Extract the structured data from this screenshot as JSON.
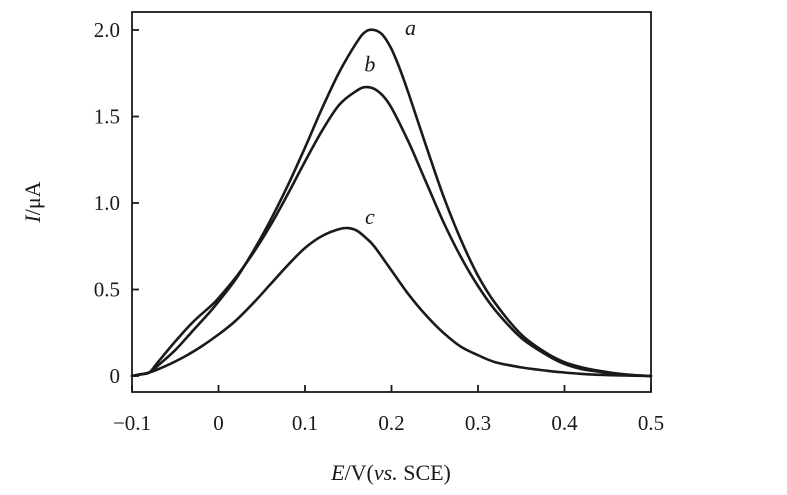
{
  "chart_data": {
    "type": "line",
    "xlabel": {
      "italic": "E",
      "rest": "/V(",
      "italic2": "vs.",
      "rest2": " SCE)"
    },
    "ylabel": {
      "italic": "I",
      "rest": "/μA"
    },
    "xlim": [
      -0.1,
      0.5
    ],
    "ylim": [
      -0.1,
      2.1
    ],
    "xticks": [
      -0.1,
      0,
      0.1,
      0.2,
      0.3,
      0.4,
      0.5
    ],
    "xtick_labels": [
      "−0.1",
      "0",
      "0.1",
      "0.2",
      "0.3",
      "0.4",
      "0.5"
    ],
    "yticks": [
      0,
      0.5,
      1.0,
      1.5,
      2.0
    ],
    "ytick_labels": [
      "0",
      "0.5",
      "1.0",
      "1.5",
      "2.0"
    ],
    "grid": false,
    "series": [
      {
        "name": "a",
        "label_pos": [
          0.222,
          1.97
        ],
        "x": [
          -0.1,
          -0.09,
          -0.08,
          -0.07,
          -0.05,
          -0.03,
          -0.01,
          0.0,
          0.02,
          0.04,
          0.06,
          0.08,
          0.1,
          0.12,
          0.14,
          0.16,
          0.17,
          0.18,
          0.19,
          0.2,
          0.21,
          0.22,
          0.24,
          0.26,
          0.28,
          0.3,
          0.32,
          0.35,
          0.38,
          0.4,
          0.42,
          0.44,
          0.46,
          0.48,
          0.5
        ],
        "values": [
          0.0,
          0.01,
          0.02,
          0.06,
          0.15,
          0.26,
          0.37,
          0.43,
          0.56,
          0.72,
          0.9,
          1.1,
          1.32,
          1.55,
          1.76,
          1.93,
          1.99,
          2.0,
          1.97,
          1.89,
          1.77,
          1.63,
          1.33,
          1.04,
          0.79,
          0.58,
          0.42,
          0.24,
          0.13,
          0.08,
          0.05,
          0.03,
          0.015,
          0.005,
          0.0
        ]
      },
      {
        "name": "b",
        "label_pos": [
          0.175,
          1.76
        ],
        "x": [
          -0.1,
          -0.09,
          -0.08,
          -0.07,
          -0.05,
          -0.03,
          -0.01,
          0.0,
          0.02,
          0.04,
          0.06,
          0.08,
          0.1,
          0.12,
          0.14,
          0.16,
          0.17,
          0.18,
          0.19,
          0.2,
          0.22,
          0.24,
          0.26,
          0.28,
          0.3,
          0.32,
          0.35,
          0.38,
          0.4,
          0.42,
          0.44,
          0.46,
          0.48,
          0.5
        ],
        "values": [
          0.0,
          0.01,
          0.02,
          0.08,
          0.2,
          0.31,
          0.4,
          0.45,
          0.57,
          0.71,
          0.87,
          1.05,
          1.24,
          1.42,
          1.57,
          1.65,
          1.67,
          1.66,
          1.62,
          1.55,
          1.35,
          1.12,
          0.89,
          0.69,
          0.52,
          0.38,
          0.22,
          0.12,
          0.07,
          0.04,
          0.025,
          0.012,
          0.004,
          0.0
        ]
      },
      {
        "name": "c",
        "label_pos": [
          0.175,
          0.88
        ],
        "x": [
          -0.1,
          -0.08,
          -0.06,
          -0.04,
          -0.02,
          0.0,
          0.02,
          0.04,
          0.06,
          0.08,
          0.1,
          0.12,
          0.14,
          0.15,
          0.16,
          0.17,
          0.18,
          0.2,
          0.22,
          0.24,
          0.26,
          0.28,
          0.3,
          0.32,
          0.35,
          0.38,
          0.4,
          0.42,
          0.44,
          0.46,
          0.48,
          0.5
        ],
        "values": [
          0.0,
          0.02,
          0.06,
          0.11,
          0.17,
          0.24,
          0.32,
          0.42,
          0.53,
          0.64,
          0.74,
          0.81,
          0.85,
          0.855,
          0.84,
          0.8,
          0.75,
          0.61,
          0.47,
          0.35,
          0.25,
          0.17,
          0.12,
          0.08,
          0.05,
          0.03,
          0.02,
          0.012,
          0.007,
          0.004,
          0.002,
          0.0
        ]
      }
    ]
  }
}
